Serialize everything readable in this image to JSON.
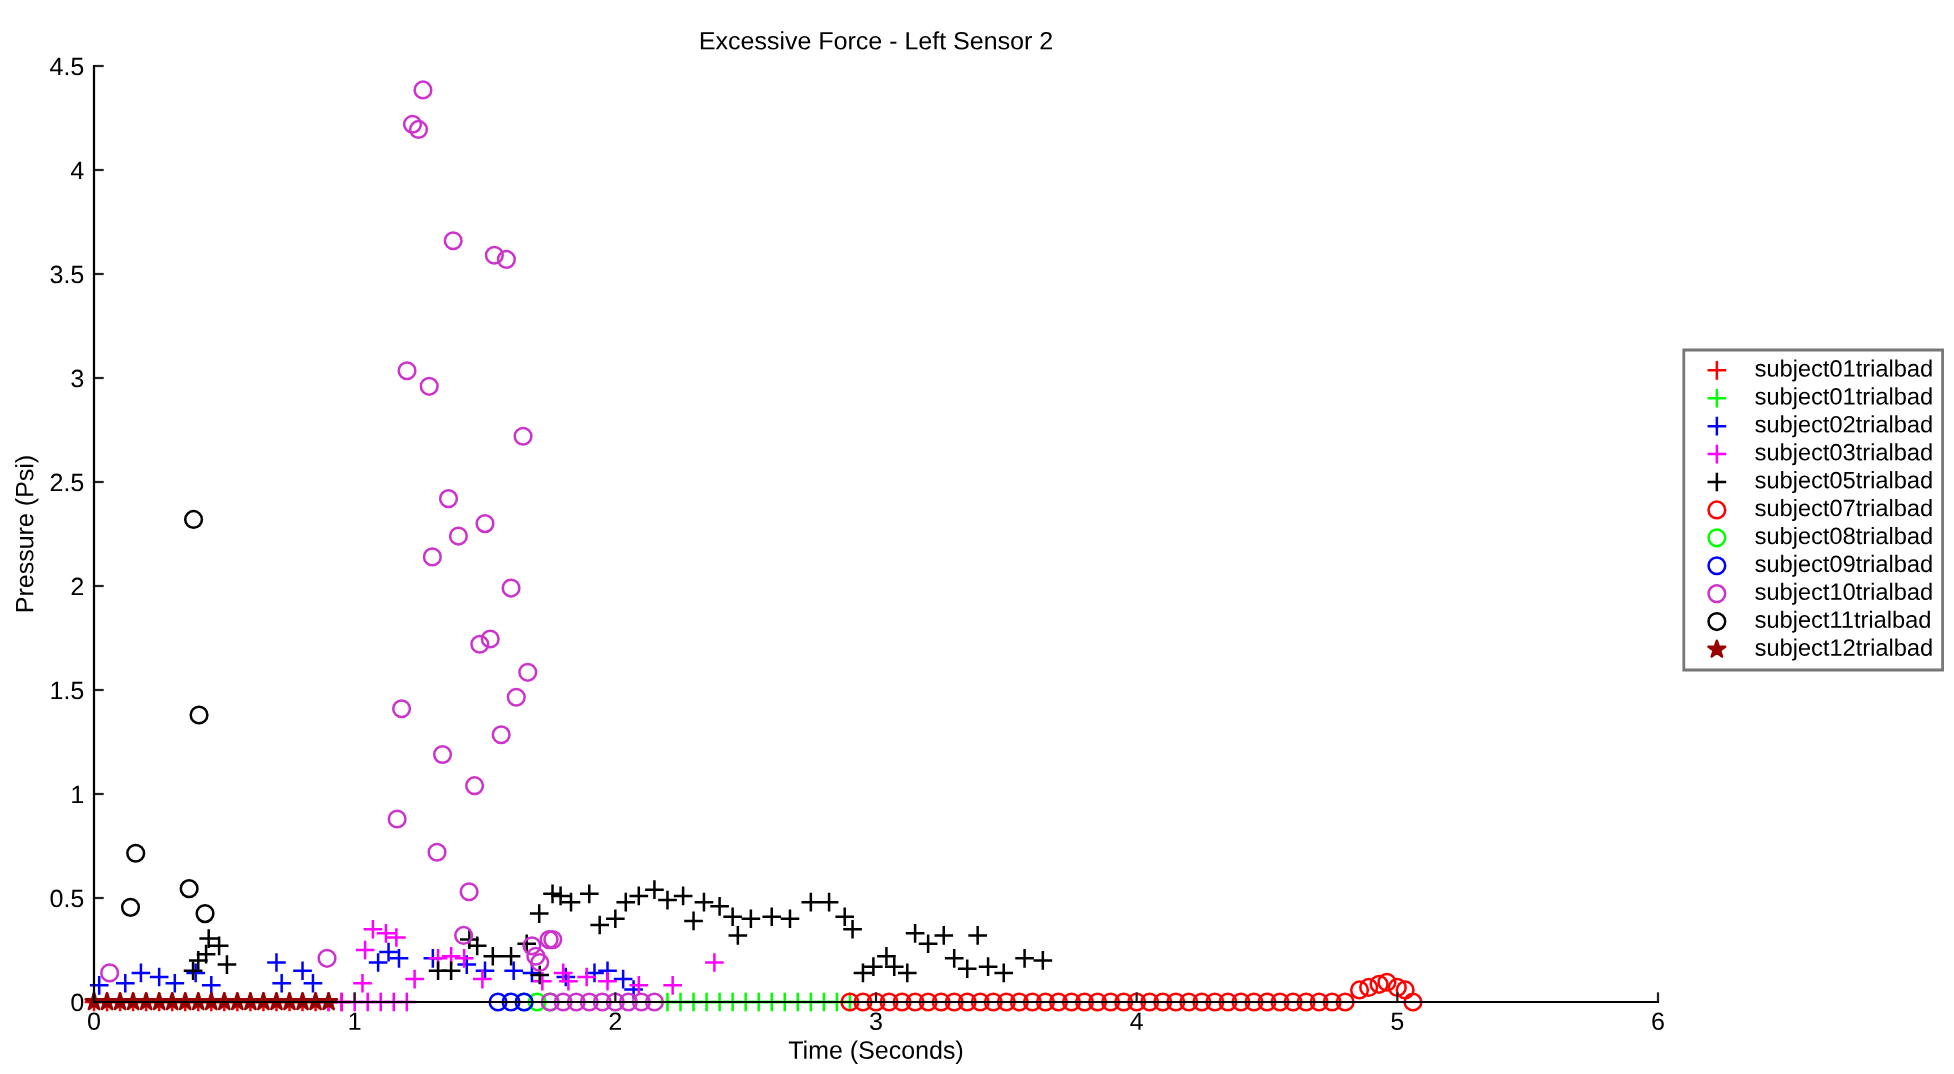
{
  "chart_data": {
    "type": "scatter",
    "title": "Excessive Force - Left Sensor 2",
    "xlabel": "Time (Seconds)",
    "ylabel": "Pressure (Psi)",
    "xlim": [
      0,
      6
    ],
    "xticks": [
      0,
      1,
      2,
      3,
      4,
      5,
      6
    ],
    "ylim": [
      0,
      4.5
    ],
    "yticks": [
      0,
      0.5,
      1,
      1.5,
      2,
      2.5,
      3,
      3.5,
      4,
      4.5
    ],
    "grid": false,
    "legend": "right",
    "series": [
      {
        "name": "subject01trialbad",
        "color": "#ff0000",
        "marker": "cross",
        "x": [
          0.0,
          0.05,
          0.1,
          0.15,
          0.2,
          0.25,
          0.3,
          0.35,
          0.4,
          0.45,
          0.5,
          0.55,
          0.6,
          0.65,
          0.7,
          0.75,
          0.8,
          0.85,
          0.9,
          0.95
        ],
        "values": [
          0,
          0,
          0,
          0,
          0,
          0,
          0,
          0,
          0,
          0,
          0,
          0,
          0,
          0,
          0,
          0,
          0,
          0,
          0,
          0
        ]
      },
      {
        "name": "subject01trialbad",
        "color": "#00ff00",
        "marker": "cross",
        "x": [
          2.2,
          2.25,
          2.3,
          2.35,
          2.4,
          2.45,
          2.5,
          2.55,
          2.6,
          2.65,
          2.7,
          2.75,
          2.8,
          2.85,
          2.9
        ],
        "values": [
          0,
          0,
          0,
          0,
          0,
          0,
          0,
          0,
          0,
          0,
          0,
          0,
          0,
          0,
          0
        ]
      },
      {
        "name": "subject02trialbad",
        "color": "#0000ff",
        "marker": "cross",
        "x": [
          0.02,
          0.12,
          0.18,
          0.25,
          0.31,
          0.39,
          0.45,
          0.7,
          0.72,
          0.8,
          0.84,
          1.09,
          1.13,
          1.17,
          1.3,
          1.43,
          1.5,
          1.61,
          1.68,
          1.81,
          1.92,
          1.97,
          2.03,
          2.07
        ],
        "values": [
          0.08,
          0.09,
          0.14,
          0.12,
          0.09,
          0.14,
          0.08,
          0.19,
          0.09,
          0.15,
          0.09,
          0.19,
          0.24,
          0.21,
          0.21,
          0.18,
          0.15,
          0.15,
          0.14,
          0.12,
          0.14,
          0.15,
          0.11,
          0.06
        ]
      },
      {
        "name": "subject03trialbad",
        "color": "#ff00ff",
        "marker": "cross",
        "x": [
          0.9,
          0.95,
          1.0,
          1.03,
          1.04,
          1.05,
          1.07,
          1.1,
          1.12,
          1.15,
          1.16,
          1.2,
          1.23,
          1.32,
          1.37,
          1.42,
          1.49,
          1.72,
          1.8,
          1.82,
          1.89,
          1.97,
          2.09,
          2.22,
          2.38
        ],
        "values": [
          0,
          0,
          0,
          0.09,
          0.25,
          0,
          0.35,
          0,
          0.33,
          0,
          0.31,
          0,
          0.11,
          0.21,
          0.22,
          0.21,
          0.11,
          0.1,
          0.14,
          0.1,
          0.12,
          0.1,
          0.08,
          0.08,
          0.19
        ]
      },
      {
        "name": "subject05trialbad",
        "color": "#000000",
        "marker": "cross",
        "x": [
          0.38,
          0.4,
          0.43,
          0.44,
          0.48,
          0.51,
          1.32,
          1.37,
          1.44,
          1.47,
          1.53,
          1.6,
          1.66,
          1.71,
          1.708,
          1.759,
          1.79,
          1.83,
          1.9,
          1.94,
          2.0,
          2.04,
          2.09,
          2.15,
          2.2,
          2.26,
          2.3,
          2.34,
          2.4,
          2.45,
          2.47,
          2.52,
          2.6,
          2.67,
          2.75,
          2.82,
          2.88,
          2.91,
          2.95,
          2.99,
          3.04,
          3.07,
          3.12,
          3.15,
          3.2,
          3.26,
          3.3,
          3.35,
          3.39,
          3.43,
          3.49,
          3.57,
          3.64
        ],
        "values": [
          0.15,
          0.2,
          0.23,
          0.305,
          0.27,
          0.18,
          0.15,
          0.15,
          0.3,
          0.27,
          0.22,
          0.22,
          0.28,
          0.13,
          0.425,
          0.52,
          0.51,
          0.48,
          0.52,
          0.37,
          0.4,
          0.48,
          0.51,
          0.54,
          0.49,
          0.51,
          0.39,
          0.48,
          0.46,
          0.41,
          0.32,
          0.4,
          0.41,
          0.4,
          0.48,
          0.48,
          0.41,
          0.35,
          0.14,
          0.17,
          0.22,
          0.17,
          0.14,
          0.33,
          0.28,
          0.32,
          0.21,
          0.16,
          0.32,
          0.17,
          0.14,
          0.21,
          0.2
        ]
      },
      {
        "name": "subject07trialbad",
        "color": "#ff0000",
        "marker": "circle",
        "x": [
          2.9,
          2.95,
          3.0,
          3.05,
          3.1,
          3.15,
          3.2,
          3.25,
          3.3,
          3.35,
          3.4,
          3.45,
          3.5,
          3.55,
          3.6,
          3.65,
          3.7,
          3.75,
          3.8,
          3.85,
          3.9,
          3.95,
          4.0,
          4.05,
          4.1,
          4.15,
          4.2,
          4.25,
          4.3,
          4.35,
          4.4,
          4.45,
          4.5,
          4.55,
          4.6,
          4.65,
          4.7,
          4.75,
          4.8,
          4.855,
          4.89,
          4.93,
          4.96,
          5.0,
          5.03,
          5.06
        ],
        "values": [
          0,
          0,
          0,
          0,
          0,
          0,
          0,
          0,
          0,
          0,
          0,
          0,
          0,
          0,
          0,
          0,
          0,
          0,
          0,
          0,
          0,
          0,
          0,
          0,
          0,
          0,
          0,
          0,
          0,
          0,
          0,
          0,
          0,
          0,
          0,
          0,
          0,
          0,
          0,
          0.058,
          0.07,
          0.085,
          0.095,
          0.07,
          0.058,
          0.0
        ]
      },
      {
        "name": "subject08trialbad",
        "color": "#00ff00",
        "marker": "circle",
        "x": [
          1.65,
          1.7,
          1.75
        ],
        "values": [
          0,
          0,
          0
        ]
      },
      {
        "name": "subject09trialbad",
        "color": "#0000ff",
        "marker": "circle",
        "x": [
          1.55,
          1.6,
          1.65
        ],
        "values": [
          0,
          0,
          0
        ]
      },
      {
        "name": "subject10trialbad",
        "color": "#cc33cc",
        "marker": "circle",
        "x": [
          1.262,
          1.222,
          1.245,
          1.378,
          1.536,
          1.582,
          1.201,
          1.286,
          1.646,
          1.36,
          1.5,
          1.398,
          1.298,
          1.6,
          1.48,
          1.52,
          1.664,
          1.62,
          1.18,
          1.562,
          1.337,
          1.46,
          1.163,
          1.316,
          1.439,
          1.418,
          0.06,
          0.894,
          1.746,
          1.76,
          1.68,
          1.695,
          1.71,
          1.75,
          1.8,
          1.85,
          1.9,
          1.95,
          2.0,
          2.05,
          2.1,
          2.15
        ],
        "values": [
          4.385,
          4.22,
          4.195,
          3.66,
          3.59,
          3.57,
          3.035,
          2.96,
          2.72,
          2.42,
          2.3,
          2.24,
          2.14,
          1.99,
          1.72,
          1.745,
          1.585,
          1.465,
          1.41,
          1.285,
          1.19,
          1.04,
          0.88,
          0.72,
          0.53,
          0.32,
          0.14,
          0.21,
          0.3,
          0.3,
          0.27,
          0.22,
          0.19,
          0,
          0,
          0,
          0,
          0,
          0,
          0,
          0,
          0
        ]
      },
      {
        "name": "subject11trialbad",
        "color": "#000000",
        "marker": "circle",
        "x": [
          0.382,
          0.403,
          0.16,
          0.14,
          0.365,
          0.426
        ],
        "values": [
          2.32,
          1.38,
          0.715,
          0.455,
          0.545,
          0.425
        ]
      },
      {
        "name": "subject12trialbad",
        "color": "#990000",
        "marker": "star",
        "x": [
          0.0,
          0.05,
          0.1,
          0.15,
          0.2,
          0.25,
          0.3,
          0.35,
          0.4,
          0.45,
          0.5,
          0.55,
          0.6,
          0.65,
          0.7,
          0.75,
          0.8,
          0.85,
          0.9
        ],
        "values": [
          0,
          0,
          0,
          0,
          0,
          0,
          0,
          0,
          0,
          0,
          0,
          0,
          0,
          0,
          0,
          0,
          0,
          0,
          0
        ]
      }
    ]
  }
}
